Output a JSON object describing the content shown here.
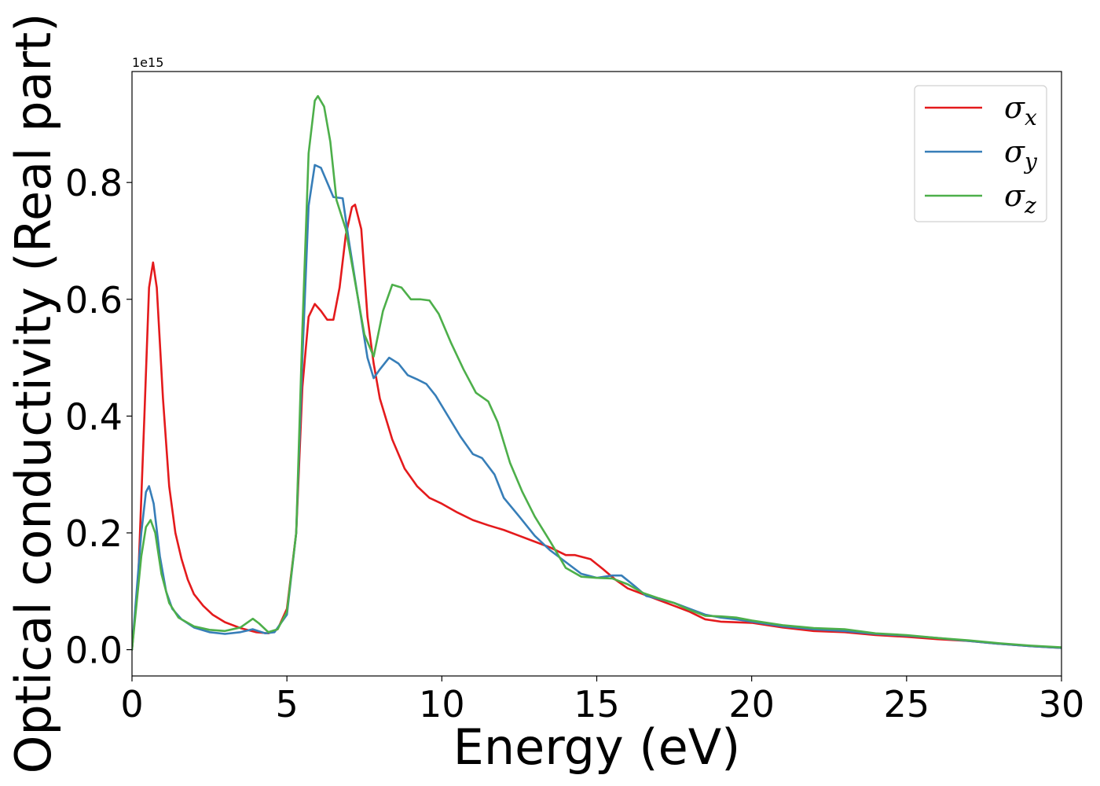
{
  "chart_data": {
    "type": "line",
    "title": "",
    "xlabel": "Energy (eV)",
    "ylabel": "Optical conductivity (Real part)",
    "y_offset_text": "1e15",
    "xlim": [
      0,
      30
    ],
    "ylim": [
      -0.045,
      0.99
    ],
    "xticks": [
      0,
      5,
      10,
      15,
      20,
      25,
      30
    ],
    "xtick_labels": [
      "0",
      "5",
      "10",
      "15",
      "20",
      "25",
      "30"
    ],
    "yticks": [
      0.0,
      0.2,
      0.4,
      0.6,
      0.8
    ],
    "ytick_labels": [
      "0.0",
      "0.2",
      "0.4",
      "0.6",
      "0.8"
    ],
    "grid": false,
    "legend_position": "top-right",
    "series": [
      {
        "name": "σx",
        "symbol": "σ",
        "subscript": "x",
        "color": "#e41a1c",
        "points": [
          [
            0.0,
            0.0
          ],
          [
            0.2,
            0.12
          ],
          [
            0.4,
            0.4
          ],
          [
            0.55,
            0.62
          ],
          [
            0.68,
            0.663
          ],
          [
            0.8,
            0.62
          ],
          [
            1.0,
            0.43
          ],
          [
            1.2,
            0.28
          ],
          [
            1.4,
            0.2
          ],
          [
            1.6,
            0.155
          ],
          [
            1.8,
            0.12
          ],
          [
            2.0,
            0.095
          ],
          [
            2.3,
            0.075
          ],
          [
            2.6,
            0.06
          ],
          [
            3.0,
            0.047
          ],
          [
            3.5,
            0.037
          ],
          [
            4.0,
            0.03
          ],
          [
            4.4,
            0.028
          ],
          [
            4.7,
            0.035
          ],
          [
            5.0,
            0.07
          ],
          [
            5.3,
            0.2
          ],
          [
            5.5,
            0.45
          ],
          [
            5.7,
            0.57
          ],
          [
            5.9,
            0.592
          ],
          [
            6.1,
            0.58
          ],
          [
            6.3,
            0.565
          ],
          [
            6.5,
            0.565
          ],
          [
            6.7,
            0.62
          ],
          [
            6.9,
            0.71
          ],
          [
            7.1,
            0.758
          ],
          [
            7.2,
            0.762
          ],
          [
            7.4,
            0.72
          ],
          [
            7.6,
            0.57
          ],
          [
            7.8,
            0.49
          ],
          [
            8.0,
            0.43
          ],
          [
            8.4,
            0.36
          ],
          [
            8.8,
            0.31
          ],
          [
            9.2,
            0.28
          ],
          [
            9.6,
            0.26
          ],
          [
            10.0,
            0.25
          ],
          [
            10.5,
            0.235
          ],
          [
            11.0,
            0.222
          ],
          [
            11.5,
            0.213
          ],
          [
            12.0,
            0.205
          ],
          [
            12.5,
            0.195
          ],
          [
            13.0,
            0.185
          ],
          [
            13.5,
            0.175
          ],
          [
            14.0,
            0.162
          ],
          [
            14.3,
            0.162
          ],
          [
            14.8,
            0.155
          ],
          [
            15.2,
            0.138
          ],
          [
            15.6,
            0.12
          ],
          [
            16.0,
            0.105
          ],
          [
            16.5,
            0.095
          ],
          [
            17.0,
            0.085
          ],
          [
            17.5,
            0.075
          ],
          [
            18.0,
            0.065
          ],
          [
            18.5,
            0.052
          ],
          [
            19.0,
            0.048
          ],
          [
            19.5,
            0.047
          ],
          [
            20.0,
            0.046
          ],
          [
            21.0,
            0.038
          ],
          [
            22.0,
            0.032
          ],
          [
            23.0,
            0.03
          ],
          [
            24.0,
            0.025
          ],
          [
            25.0,
            0.022
          ],
          [
            26.0,
            0.018
          ],
          [
            27.0,
            0.015
          ],
          [
            28.0,
            0.01
          ],
          [
            29.0,
            0.006
          ],
          [
            30.0,
            0.003
          ]
        ]
      },
      {
        "name": "σy",
        "symbol": "σ",
        "subscript": "y",
        "color": "#377eb8",
        "points": [
          [
            0.0,
            0.0
          ],
          [
            0.15,
            0.1
          ],
          [
            0.3,
            0.2
          ],
          [
            0.45,
            0.27
          ],
          [
            0.55,
            0.28
          ],
          [
            0.7,
            0.25
          ],
          [
            0.9,
            0.16
          ],
          [
            1.1,
            0.1
          ],
          [
            1.3,
            0.07
          ],
          [
            1.6,
            0.052
          ],
          [
            2.0,
            0.038
          ],
          [
            2.5,
            0.03
          ],
          [
            3.0,
            0.027
          ],
          [
            3.5,
            0.03
          ],
          [
            3.9,
            0.035
          ],
          [
            4.3,
            0.028
          ],
          [
            4.6,
            0.03
          ],
          [
            5.0,
            0.06
          ],
          [
            5.3,
            0.2
          ],
          [
            5.5,
            0.5
          ],
          [
            5.7,
            0.76
          ],
          [
            5.9,
            0.83
          ],
          [
            6.1,
            0.825
          ],
          [
            6.3,
            0.8
          ],
          [
            6.5,
            0.775
          ],
          [
            6.8,
            0.773
          ],
          [
            7.0,
            0.7
          ],
          [
            7.3,
            0.6
          ],
          [
            7.6,
            0.5
          ],
          [
            7.8,
            0.465
          ],
          [
            8.0,
            0.48
          ],
          [
            8.3,
            0.5
          ],
          [
            8.6,
            0.49
          ],
          [
            8.9,
            0.47
          ],
          [
            9.2,
            0.463
          ],
          [
            9.5,
            0.455
          ],
          [
            9.8,
            0.435
          ],
          [
            10.2,
            0.4
          ],
          [
            10.6,
            0.365
          ],
          [
            11.0,
            0.335
          ],
          [
            11.3,
            0.328
          ],
          [
            11.7,
            0.3
          ],
          [
            12.0,
            0.26
          ],
          [
            12.5,
            0.228
          ],
          [
            13.0,
            0.195
          ],
          [
            13.5,
            0.17
          ],
          [
            14.0,
            0.15
          ],
          [
            14.5,
            0.13
          ],
          [
            15.0,
            0.123
          ],
          [
            15.5,
            0.127
          ],
          [
            15.8,
            0.127
          ],
          [
            16.2,
            0.11
          ],
          [
            16.6,
            0.092
          ],
          [
            17.0,
            0.087
          ],
          [
            17.5,
            0.08
          ],
          [
            18.0,
            0.07
          ],
          [
            18.5,
            0.06
          ],
          [
            19.0,
            0.055
          ],
          [
            19.5,
            0.052
          ],
          [
            20.0,
            0.048
          ],
          [
            21.0,
            0.04
          ],
          [
            22.0,
            0.035
          ],
          [
            23.0,
            0.032
          ],
          [
            24.0,
            0.027
          ],
          [
            25.0,
            0.024
          ],
          [
            26.0,
            0.02
          ],
          [
            27.0,
            0.015
          ],
          [
            28.0,
            0.01
          ],
          [
            29.0,
            0.006
          ],
          [
            30.0,
            0.003
          ]
        ]
      },
      {
        "name": "σz",
        "symbol": "σ",
        "subscript": "z",
        "color": "#4daf4a",
        "points": [
          [
            0.0,
            0.0
          ],
          [
            0.15,
            0.08
          ],
          [
            0.3,
            0.16
          ],
          [
            0.45,
            0.21
          ],
          [
            0.6,
            0.222
          ],
          [
            0.75,
            0.2
          ],
          [
            0.95,
            0.13
          ],
          [
            1.2,
            0.08
          ],
          [
            1.5,
            0.055
          ],
          [
            2.0,
            0.04
          ],
          [
            2.5,
            0.034
          ],
          [
            3.0,
            0.032
          ],
          [
            3.5,
            0.038
          ],
          [
            3.9,
            0.053
          ],
          [
            4.1,
            0.045
          ],
          [
            4.4,
            0.03
          ],
          [
            4.7,
            0.035
          ],
          [
            5.0,
            0.065
          ],
          [
            5.3,
            0.2
          ],
          [
            5.5,
            0.55
          ],
          [
            5.7,
            0.85
          ],
          [
            5.9,
            0.94
          ],
          [
            6.0,
            0.948
          ],
          [
            6.2,
            0.93
          ],
          [
            6.4,
            0.87
          ],
          [
            6.6,
            0.77
          ],
          [
            6.9,
            0.72
          ],
          [
            7.2,
            0.63
          ],
          [
            7.5,
            0.54
          ],
          [
            7.8,
            0.502
          ],
          [
            8.1,
            0.58
          ],
          [
            8.4,
            0.625
          ],
          [
            8.7,
            0.62
          ],
          [
            9.0,
            0.6
          ],
          [
            9.3,
            0.6
          ],
          [
            9.6,
            0.598
          ],
          [
            9.9,
            0.575
          ],
          [
            10.3,
            0.525
          ],
          [
            10.7,
            0.48
          ],
          [
            11.1,
            0.44
          ],
          [
            11.5,
            0.425
          ],
          [
            11.8,
            0.39
          ],
          [
            12.2,
            0.32
          ],
          [
            12.6,
            0.27
          ],
          [
            13.0,
            0.228
          ],
          [
            13.5,
            0.185
          ],
          [
            14.0,
            0.14
          ],
          [
            14.5,
            0.125
          ],
          [
            15.0,
            0.123
          ],
          [
            15.5,
            0.122
          ],
          [
            16.0,
            0.112
          ],
          [
            16.5,
            0.097
          ],
          [
            17.0,
            0.088
          ],
          [
            17.5,
            0.08
          ],
          [
            18.0,
            0.068
          ],
          [
            18.5,
            0.058
          ],
          [
            19.0,
            0.057
          ],
          [
            19.5,
            0.055
          ],
          [
            20.0,
            0.05
          ],
          [
            21.0,
            0.042
          ],
          [
            22.0,
            0.037
          ],
          [
            23.0,
            0.035
          ],
          [
            24.0,
            0.028
          ],
          [
            25.0,
            0.025
          ],
          [
            26.0,
            0.02
          ],
          [
            27.0,
            0.016
          ],
          [
            28.0,
            0.011
          ],
          [
            29.0,
            0.007
          ],
          [
            30.0,
            0.004
          ]
        ]
      }
    ]
  }
}
